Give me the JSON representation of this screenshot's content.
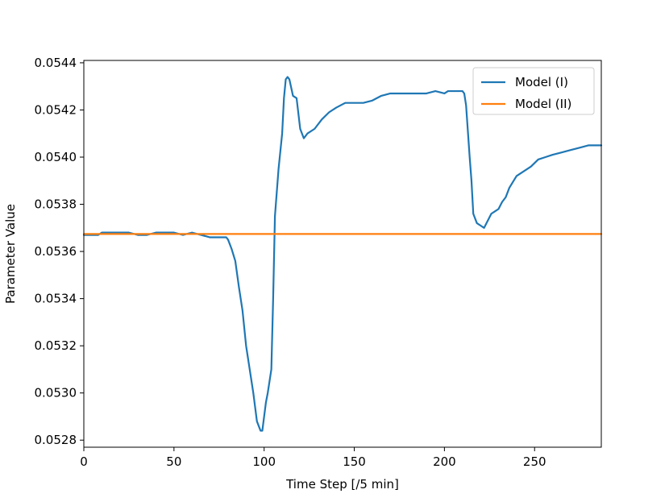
{
  "chart_data": {
    "type": "line",
    "title": "",
    "xlabel": "Time Step [/5 min]",
    "ylabel": "Parameter Value",
    "xlim": [
      0,
      287
    ],
    "ylim": [
      0.05277,
      0.05441
    ],
    "xticks": [
      0,
      50,
      100,
      150,
      200,
      250
    ],
    "xtick_labels": [
      "0",
      "50",
      "100",
      "150",
      "200",
      "250"
    ],
    "yticks": [
      0.0528,
      0.053,
      0.0532,
      0.0534,
      0.0536,
      0.0538,
      0.054,
      0.0542,
      0.0544
    ],
    "ytick_labels": [
      "0.0528",
      "0.0530",
      "0.0532",
      "0.0534",
      "0.0536",
      "0.0538",
      "0.0540",
      "0.0542",
      "0.0544"
    ],
    "grid": false,
    "legend_position": "top-right",
    "series": [
      {
        "name": "Model (I)",
        "color": "#1f77b4",
        "x": [
          0,
          8,
          10,
          15,
          20,
          25,
          30,
          35,
          40,
          45,
          50,
          55,
          60,
          65,
          70,
          75,
          79,
          80,
          82,
          84,
          86,
          88,
          90,
          92,
          94,
          96,
          98,
          99,
          100,
          101,
          102,
          104,
          105,
          106,
          108,
          110,
          111,
          112,
          113,
          114,
          116,
          118,
          120,
          122,
          124,
          128,
          132,
          136,
          140,
          145,
          150,
          155,
          160,
          165,
          170,
          175,
          180,
          185,
          190,
          195,
          200,
          202,
          205,
          208,
          210,
          211,
          212,
          213,
          214,
          215,
          216,
          218,
          220,
          222,
          224,
          226,
          228,
          230,
          232,
          234,
          236,
          240,
          244,
          248,
          252,
          256,
          260,
          265,
          270,
          275,
          280,
          285,
          287
        ],
        "y": [
          0.05367,
          0.05367,
          0.05368,
          0.05368,
          0.05368,
          0.05368,
          0.05367,
          0.05367,
          0.05368,
          0.05368,
          0.05368,
          0.05367,
          0.05368,
          0.05367,
          0.05366,
          0.05366,
          0.05366,
          0.05365,
          0.05361,
          0.05356,
          0.05345,
          0.05335,
          0.0532,
          0.0531,
          0.053,
          0.05288,
          0.05284,
          0.05284,
          0.0529,
          0.05296,
          0.053,
          0.0531,
          0.0534,
          0.05375,
          0.05395,
          0.0541,
          0.05425,
          0.05433,
          0.05434,
          0.05433,
          0.05426,
          0.05425,
          0.05412,
          0.05408,
          0.0541,
          0.05412,
          0.05416,
          0.05419,
          0.05421,
          0.05423,
          0.05423,
          0.05423,
          0.05424,
          0.05426,
          0.05427,
          0.05427,
          0.05427,
          0.05427,
          0.05427,
          0.05428,
          0.05427,
          0.05428,
          0.05428,
          0.05428,
          0.05428,
          0.05427,
          0.05422,
          0.05411,
          0.054,
          0.0539,
          0.05376,
          0.05372,
          0.05371,
          0.0537,
          0.05373,
          0.05376,
          0.05377,
          0.05378,
          0.05381,
          0.05383,
          0.05387,
          0.05392,
          0.05394,
          0.05396,
          0.05399,
          0.054,
          0.05401,
          0.05402,
          0.05403,
          0.05404,
          0.05405,
          0.05405,
          0.05405
        ]
      },
      {
        "name": "Model (II)",
        "color": "#ff7f0e",
        "x": [
          0,
          287
        ],
        "y": [
          0.053674,
          0.053674
        ]
      }
    ]
  }
}
